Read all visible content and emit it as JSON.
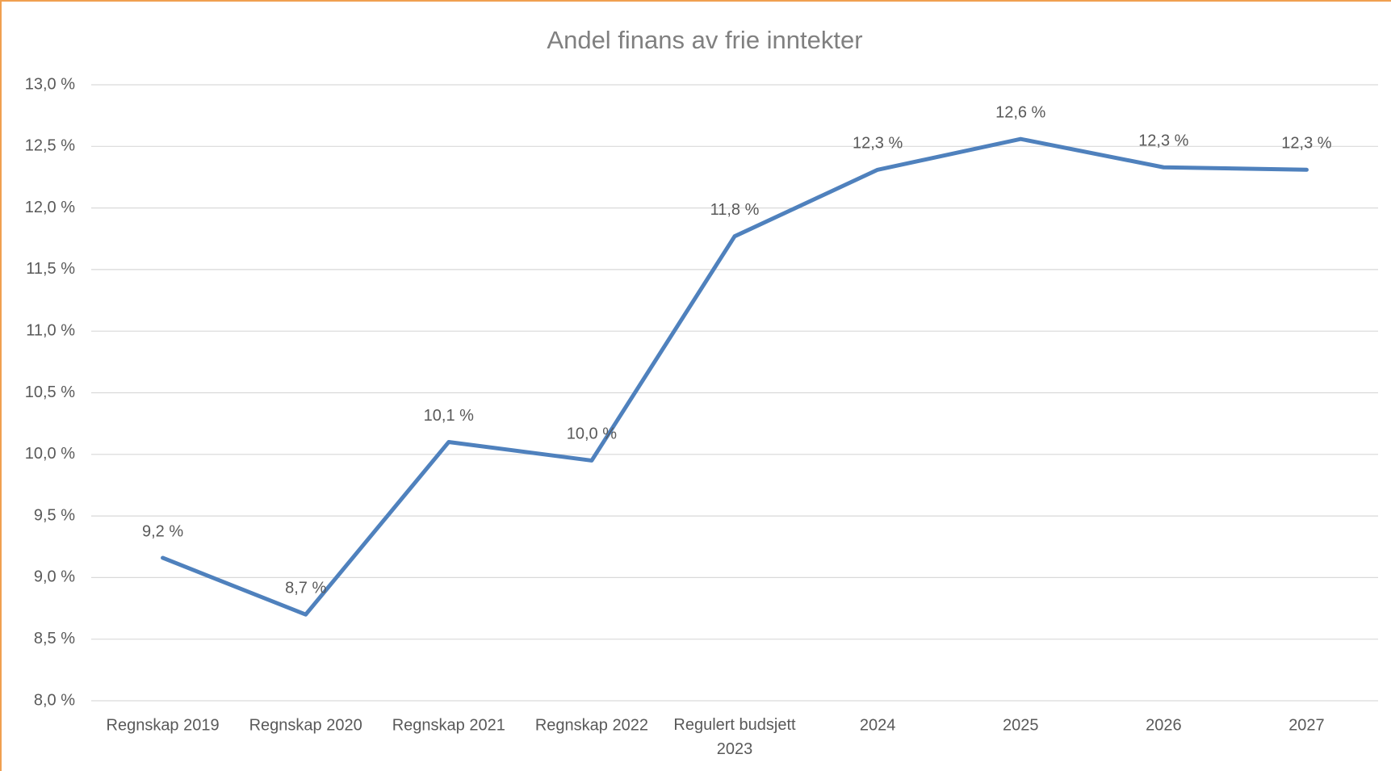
{
  "chart_data": {
    "type": "line",
    "title": "Andel finans av frie inntekter",
    "categories": [
      "Regnskap 2019",
      "Regnskap 2020",
      "Regnskap 2021",
      "Regnskap 2022",
      "Regulert budsjett 2023",
      "2024",
      "2025",
      "2026",
      "2027"
    ],
    "series": [
      {
        "name": "Andel finans",
        "color": "#4f81bd",
        "values": [
          9.16,
          8.7,
          10.1,
          9.95,
          11.77,
          12.31,
          12.56,
          12.33,
          12.31
        ],
        "value_labels": [
          "9,2 %",
          "8,7 %",
          "10,1 %",
          "10,0 %",
          "11,8 %",
          "12,3 %",
          "12,6 %",
          "12,3 %",
          "12,3 %"
        ]
      }
    ],
    "ylim": [
      8.0,
      13.0
    ],
    "yticks": [
      {
        "value": 8.0,
        "label": "8,0 %"
      },
      {
        "value": 8.5,
        "label": "8,5 %"
      },
      {
        "value": 9.0,
        "label": "9,0 %"
      },
      {
        "value": 9.5,
        "label": "9,5 %"
      },
      {
        "value": 10.0,
        "label": "10,0 %"
      },
      {
        "value": 10.5,
        "label": "10,5 %"
      },
      {
        "value": 11.0,
        "label": "11,0 %"
      },
      {
        "value": 11.5,
        "label": "11,5 %"
      },
      {
        "value": 12.0,
        "label": "12,0 %"
      },
      {
        "value": 12.5,
        "label": "12,5 %"
      },
      {
        "value": 13.0,
        "label": "13,0 %"
      }
    ],
    "grid": true
  }
}
